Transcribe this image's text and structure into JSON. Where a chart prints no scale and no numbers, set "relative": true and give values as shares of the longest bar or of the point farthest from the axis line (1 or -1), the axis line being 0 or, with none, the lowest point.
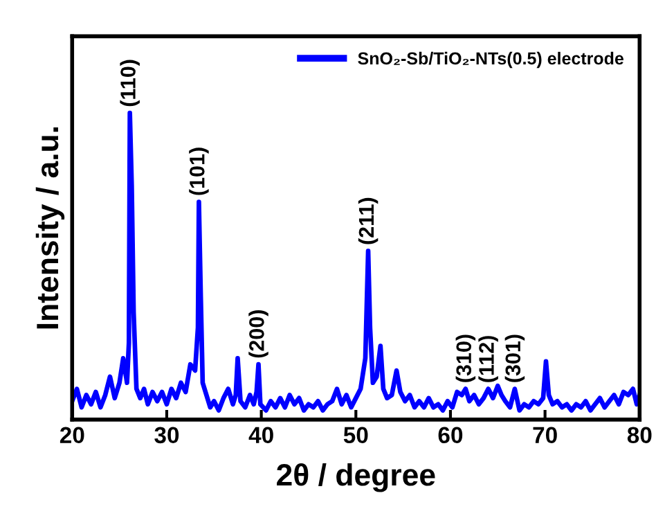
{
  "chart_data": {
    "type": "line",
    "relative": true,
    "xlabel": "2θ / degree",
    "ylabel": "Intensity / a.u.",
    "xlim": [
      20,
      80
    ],
    "xticks": [
      20,
      30,
      40,
      50,
      60,
      70,
      80
    ],
    "tick_labels": "x",
    "grid": false,
    "legend": "top right",
    "marker": "none",
    "line_style": "solid",
    "annotations": [
      {
        "text": "(110)",
        "x": 26.1,
        "y": 1.0
      },
      {
        "text": "(101)",
        "x": 33.4,
        "y": 0.71
      },
      {
        "text": "(200)",
        "x": 39.7,
        "y": 0.18
      },
      {
        "text": "(211)",
        "x": 51.3,
        "y": 0.55
      },
      {
        "text": "(310)",
        "x": 61.6,
        "y": 0.1
      },
      {
        "text": "(112)",
        "x": 64.0,
        "y": 0.1
      },
      {
        "text": "(301)",
        "x": 66.8,
        "y": 0.1
      }
    ],
    "series": [
      {
        "name": "SnO₂-Sb/TiO₂-NTs(0.5) electrode",
        "color": "#0000ff",
        "x": [
          20,
          20.5,
          21,
          21.5,
          22,
          22.5,
          23,
          23.5,
          24,
          24.5,
          25,
          25.4,
          25.8,
          26.0,
          26.1,
          26.3,
          26.5,
          26.8,
          27.2,
          27.6,
          28,
          28.5,
          29,
          29.5,
          30,
          30.5,
          31,
          31.5,
          32,
          32.5,
          33,
          33.3,
          33.4,
          33.6,
          33.8,
          34.2,
          34.6,
          35,
          35.5,
          36,
          36.5,
          37,
          37.3,
          37.5,
          37.8,
          38.3,
          38.8,
          39.2,
          39.5,
          39.7,
          39.9,
          40.5,
          41,
          41.5,
          42,
          42.5,
          43,
          43.5,
          44,
          44.5,
          45,
          45.5,
          46,
          46.5,
          47,
          47.5,
          48,
          48.5,
          49,
          49.5,
          50,
          50.5,
          51,
          51.3,
          51.5,
          51.8,
          52.2,
          52.6,
          52.9,
          53.3,
          53.8,
          54.3,
          54.7,
          55.2,
          55.7,
          56.2,
          56.7,
          57.2,
          57.7,
          58.2,
          58.7,
          59.2,
          59.7,
          60.2,
          60.7,
          61.2,
          61.6,
          62,
          62.5,
          63,
          63.5,
          64,
          64.5,
          65,
          65.4,
          65.8,
          66.3,
          66.8,
          67.3,
          67.8,
          68.3,
          68.8,
          69.3,
          69.8,
          70.1,
          70.4,
          70.8,
          71.3,
          71.8,
          72.3,
          72.8,
          73.3,
          73.8,
          74.3,
          74.8,
          75.3,
          75.8,
          76.3,
          76.8,
          77.3,
          77.8,
          78.3,
          78.8,
          79.3,
          79.7,
          80
        ],
        "values": [
          0.06,
          0.1,
          0.04,
          0.08,
          0.05,
          0.09,
          0.04,
          0.08,
          0.14,
          0.07,
          0.12,
          0.2,
          0.12,
          0.25,
          1.0,
          0.76,
          0.35,
          0.1,
          0.07,
          0.1,
          0.05,
          0.09,
          0.06,
          0.09,
          0.05,
          0.1,
          0.07,
          0.12,
          0.09,
          0.18,
          0.16,
          0.3,
          0.71,
          0.4,
          0.12,
          0.08,
          0.04,
          0.06,
          0.03,
          0.07,
          0.1,
          0.05,
          0.08,
          0.2,
          0.06,
          0.04,
          0.08,
          0.05,
          0.09,
          0.18,
          0.05,
          0.03,
          0.06,
          0.04,
          0.07,
          0.04,
          0.08,
          0.05,
          0.07,
          0.03,
          0.05,
          0.04,
          0.06,
          0.03,
          0.05,
          0.06,
          0.1,
          0.05,
          0.08,
          0.04,
          0.07,
          0.1,
          0.2,
          0.55,
          0.3,
          0.12,
          0.14,
          0.24,
          0.1,
          0.07,
          0.08,
          0.16,
          0.09,
          0.06,
          0.08,
          0.04,
          0.06,
          0.04,
          0.07,
          0.04,
          0.05,
          0.03,
          0.06,
          0.04,
          0.09,
          0.08,
          0.1,
          0.06,
          0.08,
          0.05,
          0.07,
          0.1,
          0.07,
          0.11,
          0.08,
          0.06,
          0.04,
          0.1,
          0.03,
          0.05,
          0.04,
          0.06,
          0.05,
          0.07,
          0.19,
          0.08,
          0.05,
          0.06,
          0.04,
          0.05,
          0.03,
          0.05,
          0.04,
          0.06,
          0.03,
          0.05,
          0.07,
          0.04,
          0.06,
          0.08,
          0.05,
          0.09,
          0.08,
          0.1,
          0.05,
          0.08
        ]
      }
    ]
  }
}
